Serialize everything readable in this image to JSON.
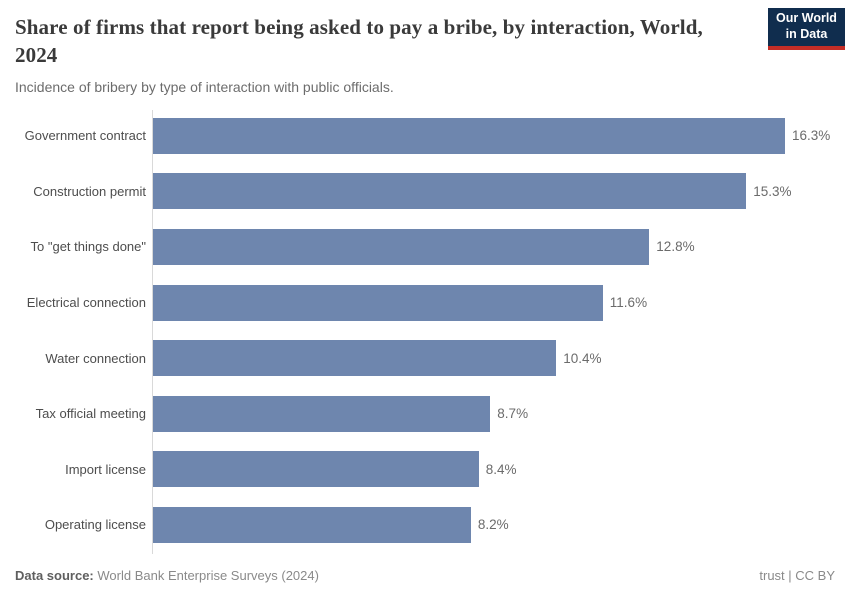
{
  "header": {
    "title": "Share of firms that report being asked to pay a bribe, by interaction, World, 2024",
    "subtitle": "Incidence of bribery by type of interaction with public officials.",
    "logo": {
      "line1": "Our World",
      "line2": "in Data"
    }
  },
  "chart_data": {
    "type": "bar",
    "orientation": "horizontal",
    "title": "Share of firms that report being asked to pay a bribe, by interaction, World, 2024",
    "subtitle": "Incidence of bribery by type of interaction with public officials.",
    "categories": [
      "Government contract",
      "Construction permit",
      "To \"get things done\"",
      "Electrical connection",
      "Water connection",
      "Tax official meeting",
      "Import license",
      "Operating license"
    ],
    "values": [
      16.3,
      15.3,
      12.8,
      11.6,
      10.4,
      8.7,
      8.4,
      8.2
    ],
    "value_labels": [
      "16.3%",
      "15.3%",
      "12.8%",
      "11.6%",
      "10.4%",
      "8.7%",
      "8.4%",
      "8.2%"
    ],
    "xlabel": "",
    "ylabel": "",
    "xlim": [
      0,
      16.3
    ],
    "grid": false,
    "legend": null,
    "bar_color": "#6e86ae"
  },
  "footer": {
    "datasource_label": "Data source:",
    "datasource_value": "World Bank Enterprise Surveys (2024)",
    "license": "trust | CC BY"
  },
  "colors": {
    "bar": "#6e86ae",
    "axis": "#d9d9d9",
    "title": "#3a3a3a",
    "subtitle": "#6c6c6c",
    "logo_bg": "#102d4e",
    "logo_stripe": "#c42d26"
  }
}
